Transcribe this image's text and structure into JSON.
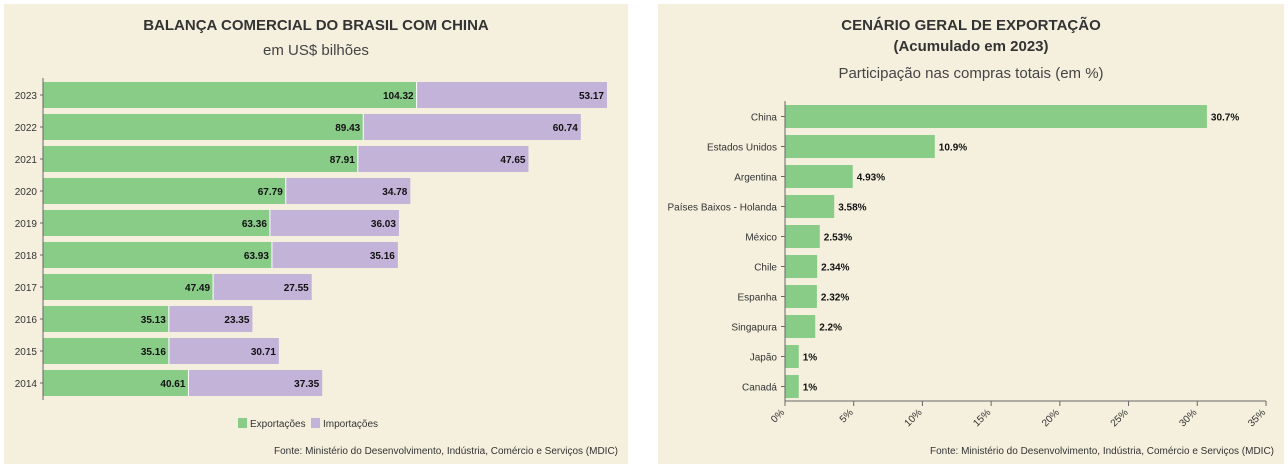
{
  "colors": {
    "export": "#88cc88",
    "import": "#c3b3d8",
    "panel_bg": "#f5f0de",
    "axis": "#666666"
  },
  "chart_data": [
    {
      "type": "bar",
      "orientation": "horizontal",
      "stacked": true,
      "title": "BALANÇA COMERCIAL DO BRASIL COM CHINA",
      "subtitle": "em US$ bilhões",
      "categories": [
        "2023",
        "2022",
        "2021",
        "2020",
        "2019",
        "2018",
        "2017",
        "2016",
        "2015",
        "2014"
      ],
      "series": [
        {
          "name": "Exportações",
          "values": [
            104.32,
            89.43,
            87.91,
            67.79,
            63.36,
            63.93,
            47.49,
            35.13,
            35.16,
            40.61
          ]
        },
        {
          "name": "Importações",
          "values": [
            53.17,
            60.74,
            47.65,
            34.78,
            36.03,
            35.16,
            27.55,
            23.35,
            30.71,
            37.35
          ]
        }
      ],
      "value_labels": {
        "Exportações": [
          "104.32",
          "89.43",
          "87.91",
          "67.79",
          "63.36",
          "63.93",
          "47.49",
          "35.13",
          "35.16",
          "40.61"
        ],
        "Importações": [
          "53.17",
          "60.74",
          "47.65",
          "34.78",
          "36.03",
          "35.16",
          "27.55",
          "23.35",
          "30.71",
          "37.35"
        ]
      },
      "xlim": [
        0,
        160
      ],
      "legend": "bottom-center",
      "source": "Fonte: Ministério do Desenvolvimento, Indústria, Comércio e Serviços (MDIC)"
    },
    {
      "type": "bar",
      "orientation": "horizontal",
      "title": "CENÁRIO GERAL DE EXPORTAÇÃO",
      "title_line2": "(Acumulado em 2023)",
      "subtitle": "Participação nas compras totais (em %)",
      "categories": [
        "China",
        "Estados Unidos",
        "Argentina",
        "Países Baixos - Holanda",
        "México",
        "Chile",
        "Espanha",
        "Singapura",
        "Japão",
        "Canadá"
      ],
      "values": [
        30.7,
        10.9,
        4.93,
        3.58,
        2.53,
        2.34,
        2.32,
        2.2,
        1,
        1
      ],
      "value_labels": [
        "30.7%",
        "10.9%",
        "4.93%",
        "3.58%",
        "2.53%",
        "2.34%",
        "2.32%",
        "2.2%",
        "1%",
        "1%"
      ],
      "xlim": [
        0,
        35
      ],
      "xticks": [
        0,
        5,
        10,
        15,
        20,
        25,
        30,
        35
      ],
      "xtick_labels": [
        "0%",
        "5%",
        "10%",
        "15%",
        "20%",
        "25%",
        "30%",
        "35%"
      ],
      "source": "Fonte: Ministério do Desenvolvimento, Indústria, Comércio e Serviços (MDIC)"
    }
  ]
}
